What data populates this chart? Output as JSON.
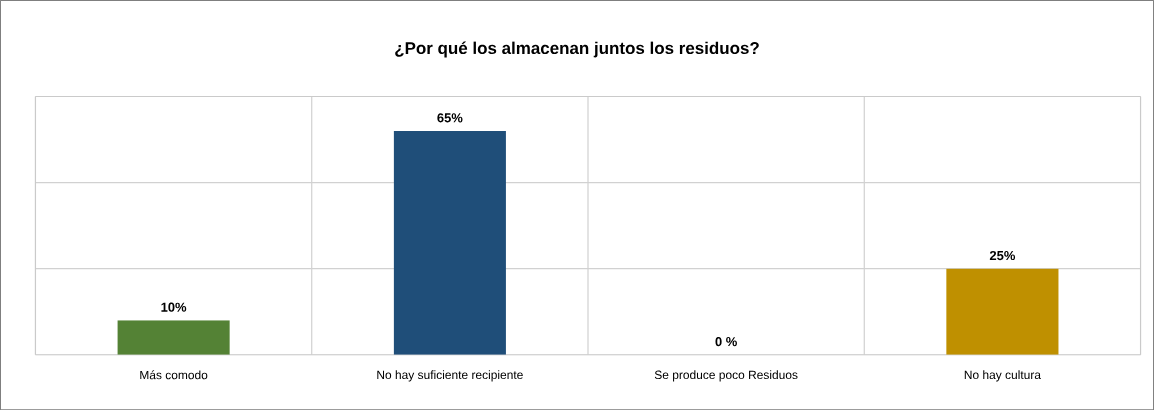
{
  "chart_data": {
    "type": "bar",
    "title": "¿Por qué los almacenan juntos los residuos?",
    "categories": [
      "Más comodo",
      "No hay suficiente recipiente",
      "Se produce poco Residuos",
      "No hay cultura"
    ],
    "values": [
      10,
      65,
      0,
      25
    ],
    "colors": [
      "#548235",
      "#1f4e79",
      "#1f4e79",
      "#bf9000"
    ],
    "value_labels": [
      "10%",
      "65%",
      "0 %",
      "25%"
    ],
    "ylim": [
      0,
      75
    ],
    "yticks": [
      {
        "value": 0,
        "label": null
      },
      {
        "value": 25,
        "label": null
      },
      {
        "value": 50,
        "label": null
      },
      {
        "value": 75,
        "label": null
      }
    ],
    "tick_labels": "x",
    "grid": true
  }
}
